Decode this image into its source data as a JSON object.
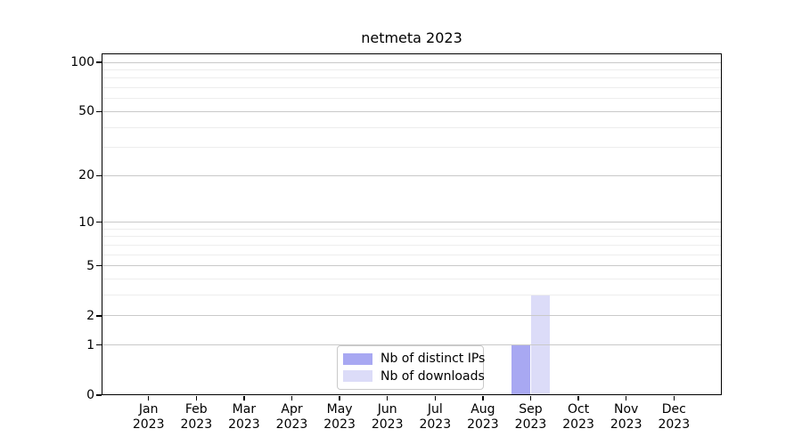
{
  "chart_data": {
    "type": "bar",
    "title": "netmeta 2023",
    "categories": [
      "Jan 2023",
      "Feb 2023",
      "Mar 2023",
      "Apr 2023",
      "May 2023",
      "Jun 2023",
      "Jul 2023",
      "Aug 2023",
      "Sep 2023",
      "Oct 2023",
      "Nov 2023",
      "Dec 2023"
    ],
    "months": [
      "Jan",
      "Feb",
      "Mar",
      "Apr",
      "May",
      "Jun",
      "Jul",
      "Aug",
      "Sep",
      "Oct",
      "Nov",
      "Dec"
    ],
    "year": "2023",
    "series": [
      {
        "name": "Nb of distinct IPs",
        "color": "#a8a8f2",
        "values": [
          0,
          0,
          0,
          0,
          0,
          0,
          0,
          0,
          1,
          0,
          0,
          0
        ]
      },
      {
        "name": "Nb of downloads",
        "color": "#dcdcf8",
        "values": [
          0,
          0,
          0,
          0,
          0,
          0,
          0,
          0,
          3,
          0,
          0,
          0
        ]
      }
    ],
    "y_axis": {
      "scale": "log1p",
      "tick_values": [
        0,
        1,
        2,
        5,
        10,
        20,
        50,
        100
      ],
      "minor_grid_values": [
        3,
        4,
        6,
        7,
        8,
        9,
        30,
        40,
        60,
        70,
        80,
        90
      ],
      "max": 100
    },
    "xlabel": "",
    "ylabel": "",
    "grid": true,
    "legend_position": "lower center"
  },
  "colors": {
    "major_grid": "#c9c9c9",
    "minor_grid": "#ededed",
    "axis": "#000000",
    "legend_border": "#c9c9c9",
    "background": "#ffffff"
  }
}
